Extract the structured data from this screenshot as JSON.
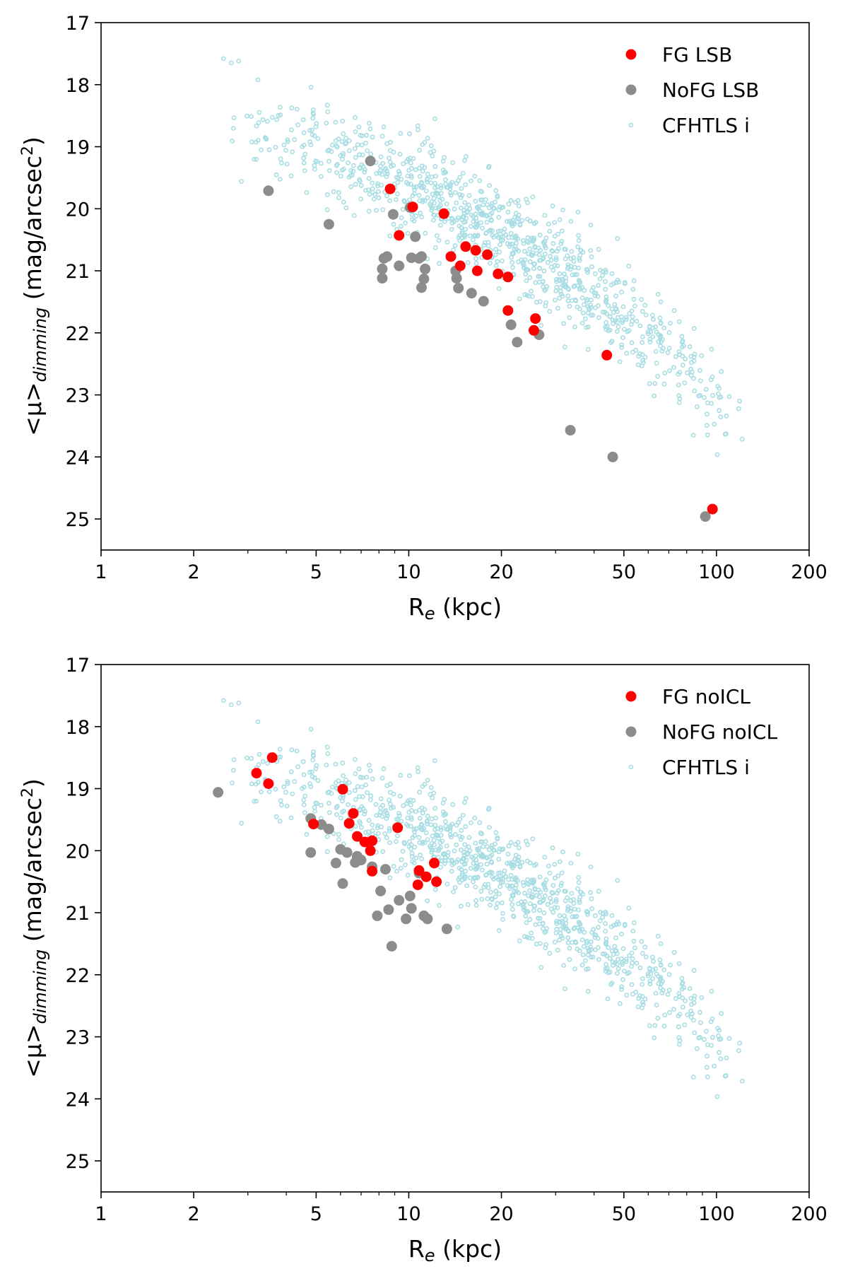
{
  "chart_data": [
    {
      "type": "scatter",
      "title": "",
      "xlabel": "R",
      "xlabel_sub": "e",
      "xlabel_unit": " (kpc)",
      "ylabel": "<μ>",
      "ylabel_sub": "dimming",
      "ylabel_unit": " (mag/arcsec",
      "ylabel_sup": "2",
      "ylabel_close": ")",
      "xscale": "log",
      "xlim": [
        1,
        200
      ],
      "ylim": [
        25.5,
        17
      ],
      "y_inverted": true,
      "xticks": [
        "1",
        "2",
        "5",
        "10",
        "20",
        "50",
        "100",
        "200"
      ],
      "yticks": [
        "17",
        "18",
        "19",
        "20",
        "21",
        "22",
        "23",
        "24",
        "25"
      ],
      "legend_position": "top-right",
      "series": [
        {
          "name": "FG LSB",
          "color": "#ff0000",
          "x": [
            8.7,
            10.3,
            9.3,
            13.0,
            13.7,
            15.3,
            16.5,
            14.7,
            18.0,
            16.7,
            19.5,
            21.0,
            21.0,
            25.8,
            25.5,
            44.0,
            97.0
          ],
          "y": [
            19.68,
            19.97,
            20.43,
            20.08,
            20.77,
            20.61,
            20.67,
            20.92,
            20.74,
            21.0,
            21.05,
            21.1,
            21.64,
            21.77,
            21.96,
            22.36,
            24.84
          ]
        },
        {
          "name": "NoFG LSB",
          "color": "#8c8c8c",
          "x": [
            7.5,
            3.5,
            5.5,
            8.9,
            10.1,
            10.5,
            8.3,
            8.5,
            9.3,
            8.2,
            8.2,
            10.2,
            10.8,
            11.0,
            11.3,
            11.2,
            11.0,
            14.2,
            14.3,
            14.5,
            16.0,
            17.5,
            21.5,
            22.5,
            26.5,
            33.5,
            46.0,
            92.0
          ],
          "y": [
            19.23,
            19.71,
            20.25,
            20.09,
            19.98,
            20.45,
            20.8,
            20.77,
            20.92,
            20.97,
            21.12,
            20.79,
            20.8,
            20.77,
            20.97,
            21.13,
            21.27,
            21.0,
            21.12,
            21.28,
            21.36,
            21.49,
            21.87,
            22.15,
            22.03,
            23.57,
            24.0,
            24.96
          ]
        },
        {
          "name": "CFHTLS i",
          "color": "#a8dde3",
          "generated_cloud": true,
          "seed": 12345,
          "count": 1000,
          "band_log_x": [
            0.39,
            2.15
          ],
          "relation_mean_y": "18.95 + 1.14*(log10(x)-0.6) + 1.25*(log10(x)-0.6)^2",
          "scatter_y": 0.55,
          "extra_points_x": [
            2.5,
            2.65,
            2.8
          ],
          "extra_points_y": [
            17.58,
            17.65,
            17.62
          ]
        }
      ]
    },
    {
      "type": "scatter",
      "title": "",
      "xlabel": "R",
      "xlabel_sub": "e",
      "xlabel_unit": " (kpc)",
      "ylabel": "<μ>",
      "ylabel_sub": "dimming",
      "ylabel_unit": " (mag/arcsec",
      "ylabel_sup": "2",
      "ylabel_close": ")",
      "xscale": "log",
      "xlim": [
        1,
        200
      ],
      "ylim": [
        25.5,
        17
      ],
      "y_inverted": true,
      "xticks": [
        "1",
        "2",
        "5",
        "10",
        "20",
        "50",
        "100",
        "200"
      ],
      "yticks": [
        "17",
        "18",
        "19",
        "20",
        "21",
        "22",
        "23",
        "24",
        "25"
      ],
      "legend_position": "top-right",
      "series": [
        {
          "name": "FG noICL",
          "color": "#ff0000",
          "x": [
            3.6,
            3.2,
            3.5,
            6.1,
            4.9,
            6.4,
            6.6,
            6.8,
            7.2,
            7.6,
            7.5,
            7.6,
            9.2,
            10.8,
            12.1,
            11.4,
            12.3,
            10.7
          ],
          "y": [
            18.5,
            18.75,
            18.92,
            19.01,
            19.57,
            19.56,
            19.4,
            19.77,
            19.86,
            19.84,
            20.0,
            20.33,
            19.63,
            20.32,
            20.2,
            20.42,
            20.5,
            20.55
          ],
          "no_fill": false
        },
        {
          "name": "NoFG noICL",
          "color": "#8c8c8c",
          "x": [
            2.4,
            4.8,
            5.2,
            5.5,
            4.8,
            6.3,
            6.8,
            6.0,
            7.0,
            6.7,
            5.8,
            7.6,
            8.4,
            6.1,
            8.1,
            9.3,
            10.1,
            10.8,
            8.6,
            7.9,
            9.8,
            11.2,
            10.2,
            11.5,
            13.3,
            8.8
          ],
          "y": [
            19.06,
            19.48,
            19.58,
            19.65,
            20.03,
            20.03,
            20.09,
            19.98,
            20.15,
            20.19,
            20.2,
            20.26,
            20.3,
            20.53,
            20.65,
            20.8,
            20.73,
            20.36,
            20.95,
            21.05,
            21.1,
            21.05,
            20.93,
            21.1,
            21.26,
            21.54
          ]
        },
        {
          "name": "CFHTLS i",
          "color": "#a8dde3",
          "generated_cloud": true,
          "seed": 12345,
          "count": 1000,
          "band_log_x": [
            0.39,
            2.15
          ],
          "relation_mean_y": "18.95 + 1.14*(log10(x)-0.6) + 1.25*(log10(x)-0.6)^2",
          "scatter_y": 0.55,
          "extra_points_x": [
            2.5,
            2.65,
            2.8
          ],
          "extra_points_y": [
            17.58,
            17.65,
            17.62
          ]
        }
      ]
    }
  ]
}
